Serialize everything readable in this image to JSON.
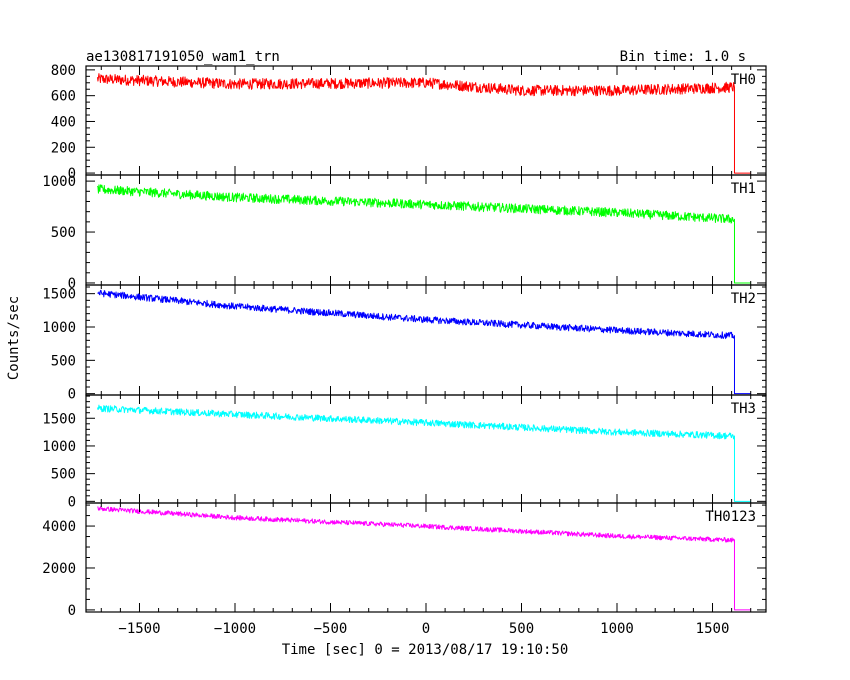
{
  "chart_data": {
    "type": "line",
    "title": "ae130817191050_wam1_trn",
    "bin_label": "Bin time: 1.0 s",
    "xlabel": "Time [sec] 0 = 2013/08/17 19:10:50",
    "ylabel": "Counts/sec",
    "xlim": [
      -1780,
      1780
    ],
    "x_ticks": [
      -1500,
      -1000,
      -500,
      0,
      500,
      1000,
      1500
    ],
    "x_tick_labels": [
      "−1500",
      "−1000",
      "−500",
      "0",
      "500",
      "1000",
      "1500"
    ],
    "x_minor_step": 100,
    "data_x_range": [
      -1720,
      1610
    ],
    "drop_x": 1615,
    "end_x": 1700,
    "panels": [
      {
        "name": "TH0",
        "color": "#ff0000",
        "ylim": [
          -15,
          830
        ],
        "y_ticks": [
          0,
          200,
          400,
          600,
          800
        ],
        "y_tick_labels": [
          "0",
          "200",
          "400",
          "600",
          "800"
        ],
        "y_minor_step": 50,
        "trend_x": [
          -1720,
          -1000,
          0,
          500,
          1000,
          1610
        ],
        "trend_y": [
          730,
          690,
          700,
          640,
          640,
          665
        ],
        "noise": 42
      },
      {
        "name": "TH1",
        "color": "#00ff00",
        "ylim": [
          -20,
          1060
        ],
        "y_ticks": [
          0,
          500,
          1000
        ],
        "y_tick_labels": [
          "0",
          "500",
          "1000"
        ],
        "y_minor_step": 100,
        "trend_x": [
          -1720,
          -1000,
          0,
          1000,
          1610
        ],
        "trend_y": [
          920,
          840,
          770,
          690,
          625
        ],
        "noise": 45
      },
      {
        "name": "TH2",
        "color": "#0000ff",
        "ylim": [
          -20,
          1630
        ],
        "y_ticks": [
          0,
          500,
          1000,
          1500
        ],
        "y_tick_labels": [
          "0",
          "500",
          "1000",
          "1500"
        ],
        "y_minor_step": 100,
        "trend_x": [
          -1720,
          -1000,
          0,
          1000,
          1610
        ],
        "trend_y": [
          1510,
          1310,
          1110,
          950,
          870
        ],
        "noise": 50
      },
      {
        "name": "TH3",
        "color": "#00ffff",
        "ylim": [
          -30,
          1920
        ],
        "y_ticks": [
          0,
          500,
          1000,
          1500
        ],
        "y_tick_labels": [
          "0",
          "500",
          "1000",
          "1500"
        ],
        "y_minor_step": 100,
        "trend_x": [
          -1720,
          -1000,
          0,
          1000,
          1610
        ],
        "trend_y": [
          1680,
          1570,
          1420,
          1250,
          1180
        ],
        "noise": 60
      },
      {
        "name": "TH0123",
        "color": "#ff00ff",
        "ylim": [
          -100,
          5100
        ],
        "y_ticks": [
          0,
          2000,
          4000
        ],
        "y_tick_labels": [
          "0",
          "2000",
          "4000"
        ],
        "y_minor_step": 500,
        "trend_x": [
          -1720,
          -1000,
          0,
          1000,
          1610
        ],
        "trend_y": [
          4840,
          4400,
          3990,
          3520,
          3330
        ],
        "noise": 110
      }
    ]
  }
}
